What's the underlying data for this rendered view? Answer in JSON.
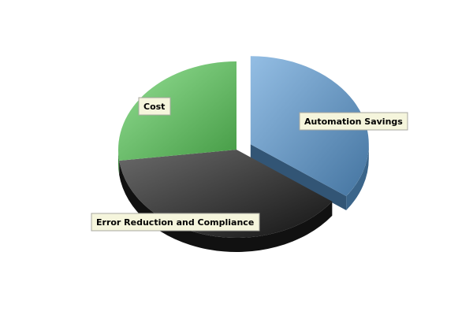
{
  "chart_data": {
    "type": "pie",
    "style": "3d-exploded",
    "slices": [
      {
        "label": "Automation Savings",
        "value": 35,
        "color": "#5b9bd5"
      },
      {
        "label": "Error Reduction and Compliance",
        "value": 38,
        "color": "#1a1a1a"
      },
      {
        "label": "Cost",
        "value": 27,
        "color": "#5ccf5c"
      }
    ],
    "label_box_color": "#f5f5dc",
    "legend": "none"
  }
}
